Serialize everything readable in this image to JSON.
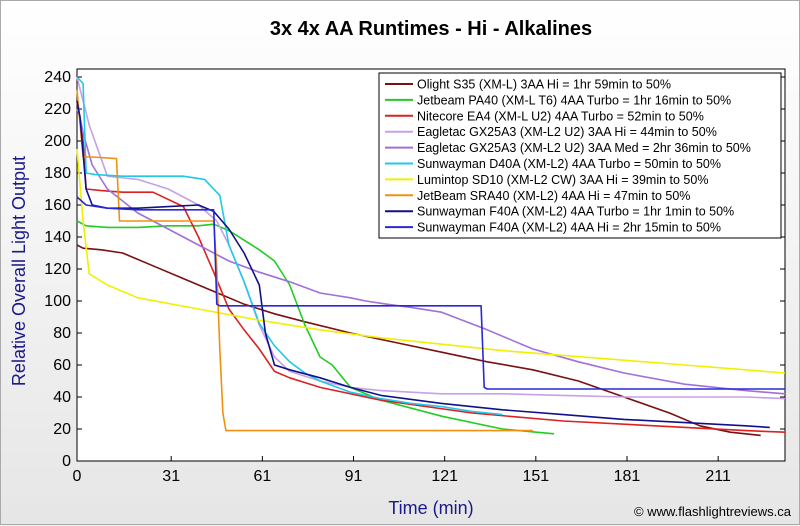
{
  "chart_data": {
    "type": "line",
    "title": "3x 4x AA Runtimes - Hi - Alkalines",
    "xlabel": "Time (min)",
    "ylabel": "Relative Overall Light Output",
    "credit": "© www.flashlightreviews.ca",
    "xlim": [
      0,
      233
    ],
    "ylim": [
      0,
      245
    ],
    "xticks": [
      0,
      31,
      61,
      91,
      121,
      151,
      181,
      211
    ],
    "yticks": [
      0,
      20,
      40,
      60,
      80,
      100,
      120,
      140,
      160,
      180,
      200,
      220,
      240
    ],
    "grid": false,
    "legend_position": "top-right",
    "series": [
      {
        "name": "Olight S35 (XM-L) 3AA Hi = 1hr 59min to 50%",
        "color": "#7a1010",
        "x": [
          0,
          2,
          8,
          15,
          25,
          35,
          45,
          55,
          65,
          75,
          90,
          105,
          120,
          135,
          150,
          165,
          180,
          195,
          205,
          215,
          225
        ],
        "y": [
          135,
          133,
          132,
          130,
          122,
          114,
          106,
          98,
          92,
          87,
          80,
          74,
          68,
          62,
          57,
          50,
          40,
          30,
          22,
          18,
          16
        ]
      },
      {
        "name": "Jetbeam PA40 (XM-L T6) 4AA Turbo = 1hr 16min to 50%",
        "color": "#22cc22",
        "x": [
          0,
          3,
          10,
          20,
          30,
          40,
          45,
          50,
          55,
          60,
          65,
          70,
          75,
          80,
          84,
          90,
          100,
          120,
          140,
          157
        ],
        "y": [
          150,
          147,
          146,
          146,
          147,
          147,
          148,
          144,
          138,
          132,
          125,
          110,
          85,
          65,
          60,
          46,
          38,
          28,
          20,
          17
        ]
      },
      {
        "name": "Nitecore EA4 (XM-L U2) 4AA Turbo = 52min to 50%",
        "color": "#dd2020",
        "x": [
          0,
          2,
          3,
          8,
          15,
          25,
          35,
          40,
          45,
          50,
          55,
          60,
          65,
          70,
          80,
          100,
          130,
          160,
          190,
          220,
          233
        ],
        "y": [
          225,
          200,
          170,
          169,
          168,
          168,
          159,
          140,
          118,
          95,
          82,
          70,
          56,
          52,
          46,
          38,
          30,
          25,
          22,
          19,
          18
        ]
      },
      {
        "name": "Eagletac GX25A3 (XM-L2 U2) 3AA Hi = 44min to 50%",
        "color": "#c8a0e8",
        "x": [
          0,
          4,
          10,
          20,
          30,
          40,
          46,
          50,
          55,
          60,
          65,
          70,
          80,
          90,
          100,
          120,
          140,
          160,
          180,
          200,
          220,
          233
        ],
        "y": [
          240,
          210,
          178,
          176,
          170,
          160,
          150,
          135,
          112,
          85,
          65,
          56,
          50,
          46,
          44,
          42,
          42,
          41,
          40,
          40,
          40,
          39
        ]
      },
      {
        "name": "Eagletac GX25A3 (XM-L2 U2) 3AA Med = 2hr 36min to 50%",
        "color": "#a070d8",
        "x": [
          0,
          1,
          2,
          5,
          10,
          20,
          30,
          40,
          50,
          60,
          70,
          80,
          90,
          95,
          102,
          110,
          120,
          135,
          150,
          165,
          180,
          200,
          220,
          233
        ],
        "y": [
          220,
          215,
          205,
          185,
          170,
          155,
          145,
          135,
          125,
          118,
          112,
          105,
          102,
          100,
          98,
          96,
          93,
          82,
          70,
          62,
          55,
          48,
          44,
          42
        ]
      },
      {
        "name": "Sunwayman D40A (XM-L2) 4AA Turbo = 50min to 50%",
        "color": "#22c8e8",
        "x": [
          0,
          2,
          3,
          6,
          15,
          25,
          35,
          42,
          47,
          50,
          55,
          60,
          65,
          70,
          75,
          80,
          90,
          100,
          110,
          120,
          130,
          140
        ],
        "y": [
          240,
          236,
          180,
          179,
          178,
          178,
          178,
          176,
          166,
          135,
          112,
          86,
          72,
          62,
          55,
          50,
          43,
          39,
          36,
          34,
          31,
          29
        ]
      },
      {
        "name": "Lumintop SD10 (XM-L2 CW) 3AA Hi = 39min to 50%",
        "color": "#f0f000",
        "x": [
          0,
          2,
          4,
          10,
          20,
          40,
          60,
          80,
          100,
          120,
          140,
          160,
          180,
          200,
          220,
          233
        ],
        "y": [
          195,
          150,
          117,
          110,
          102,
          95,
          88,
          82,
          77,
          73,
          69,
          66,
          63,
          60,
          57,
          55
        ]
      },
      {
        "name": "JetBeam SRA40 (XM-L2) 4AA Hi = 47min to 50%",
        "color": "#f09010",
        "x": [
          0,
          2,
          3,
          5,
          13,
          14,
          20,
          30,
          45,
          46,
          47,
          48,
          49,
          60,
          80,
          100,
          120,
          140,
          150
        ],
        "y": [
          232,
          190,
          190,
          190,
          189,
          150,
          150,
          150,
          150,
          120,
          70,
          30,
          19,
          19,
          19,
          19,
          19,
          19,
          19
        ]
      },
      {
        "name": "Sunwayman F40A (XM-L2) 4AA Turbo = 1hr 1min to 50%",
        "color": "#10108a",
        "x": [
          0,
          1,
          3,
          5,
          10,
          20,
          30,
          40,
          45,
          50,
          55,
          60,
          62,
          65,
          70,
          80,
          90,
          100,
          120,
          140,
          160,
          180,
          200,
          220,
          228
        ],
        "y": [
          225,
          215,
          170,
          160,
          158,
          158,
          159,
          160,
          156,
          145,
          130,
          110,
          80,
          60,
          57,
          52,
          46,
          41,
          36,
          32,
          29,
          26,
          24,
          22,
          21
        ]
      },
      {
        "name": "Sunwayman F40A (XM-L2) 4AA Hi = 2hr 15min to 50%",
        "color": "#2828d8",
        "x": [
          0,
          3,
          10,
          20,
          30,
          40,
          45,
          46,
          47,
          60,
          80,
          100,
          120,
          133,
          134,
          135,
          150,
          180,
          210,
          233
        ],
        "y": [
          165,
          160,
          158,
          157,
          157,
          157,
          157,
          98,
          97,
          97,
          97,
          97,
          97,
          97,
          46,
          45,
          45,
          45,
          45,
          45
        ]
      }
    ]
  }
}
